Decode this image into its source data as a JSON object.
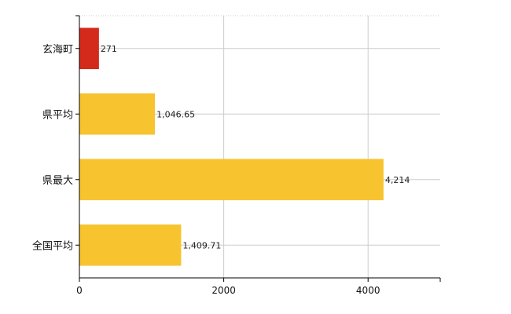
{
  "chart_data": {
    "type": "bar",
    "orientation": "horizontal",
    "categories": [
      "玄海町",
      "県平均",
      "県最大",
      "全国平均"
    ],
    "values": [
      271,
      1046.65,
      4214,
      1409.71
    ],
    "value_labels": [
      "271",
      "1,046.65",
      "4,214",
      "1,409.71"
    ],
    "bar_colors": [
      "#d42a1c",
      "#f7c430",
      "#f7c430",
      "#f7c430"
    ],
    "xlim": [
      0,
      5000
    ],
    "xticks": [
      0,
      2000,
      4000
    ],
    "xtick_labels": [
      "0",
      "2000",
      "4000"
    ],
    "grid": true,
    "legend": "none",
    "title": "",
    "xlabel": "",
    "ylabel": ""
  }
}
